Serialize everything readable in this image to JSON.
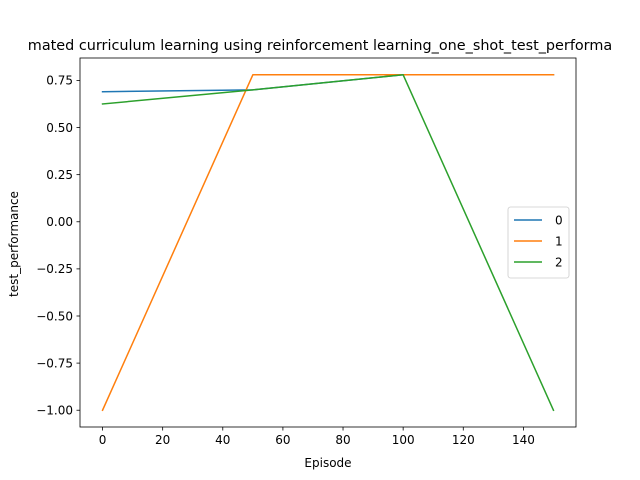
{
  "chart_data": {
    "type": "line",
    "title": "mated curriculum learning using reinforcement learning_one_shot_test_performa",
    "xlabel": "Episode",
    "ylabel": "test_performance",
    "xlim": [
      -7.5,
      157.5
    ],
    "ylim": [
      -1.089,
      0.869
    ],
    "x_ticks": [
      0,
      20,
      40,
      60,
      80,
      100,
      120,
      140
    ],
    "x_tick_labels": [
      "0",
      "20",
      "40",
      "60",
      "80",
      "100",
      "120",
      "140"
    ],
    "y_ticks": [
      -1.0,
      -0.75,
      -0.5,
      -0.25,
      0.0,
      0.25,
      0.5,
      0.75
    ],
    "y_tick_labels": [
      "−1.00",
      "−0.75",
      "−0.50",
      "−0.25",
      "0.00",
      "0.25",
      "0.50",
      "0.75"
    ],
    "grid": false,
    "legend_position": "center-right",
    "series": [
      {
        "name": "0",
        "color": "#1f77b4",
        "x": [
          0,
          50,
          100,
          150
        ],
        "y": [
          0.69,
          0.7,
          0.78,
          0.78
        ]
      },
      {
        "name": "1",
        "color": "#ff7f0e",
        "x": [
          0,
          50,
          100,
          150
        ],
        "y": [
          -1.0,
          0.78,
          0.78,
          0.78
        ]
      },
      {
        "name": "2",
        "color": "#2ca02c",
        "x": [
          0,
          50,
          100,
          150
        ],
        "y": [
          0.625,
          0.7,
          0.78,
          -1.0
        ]
      }
    ]
  }
}
